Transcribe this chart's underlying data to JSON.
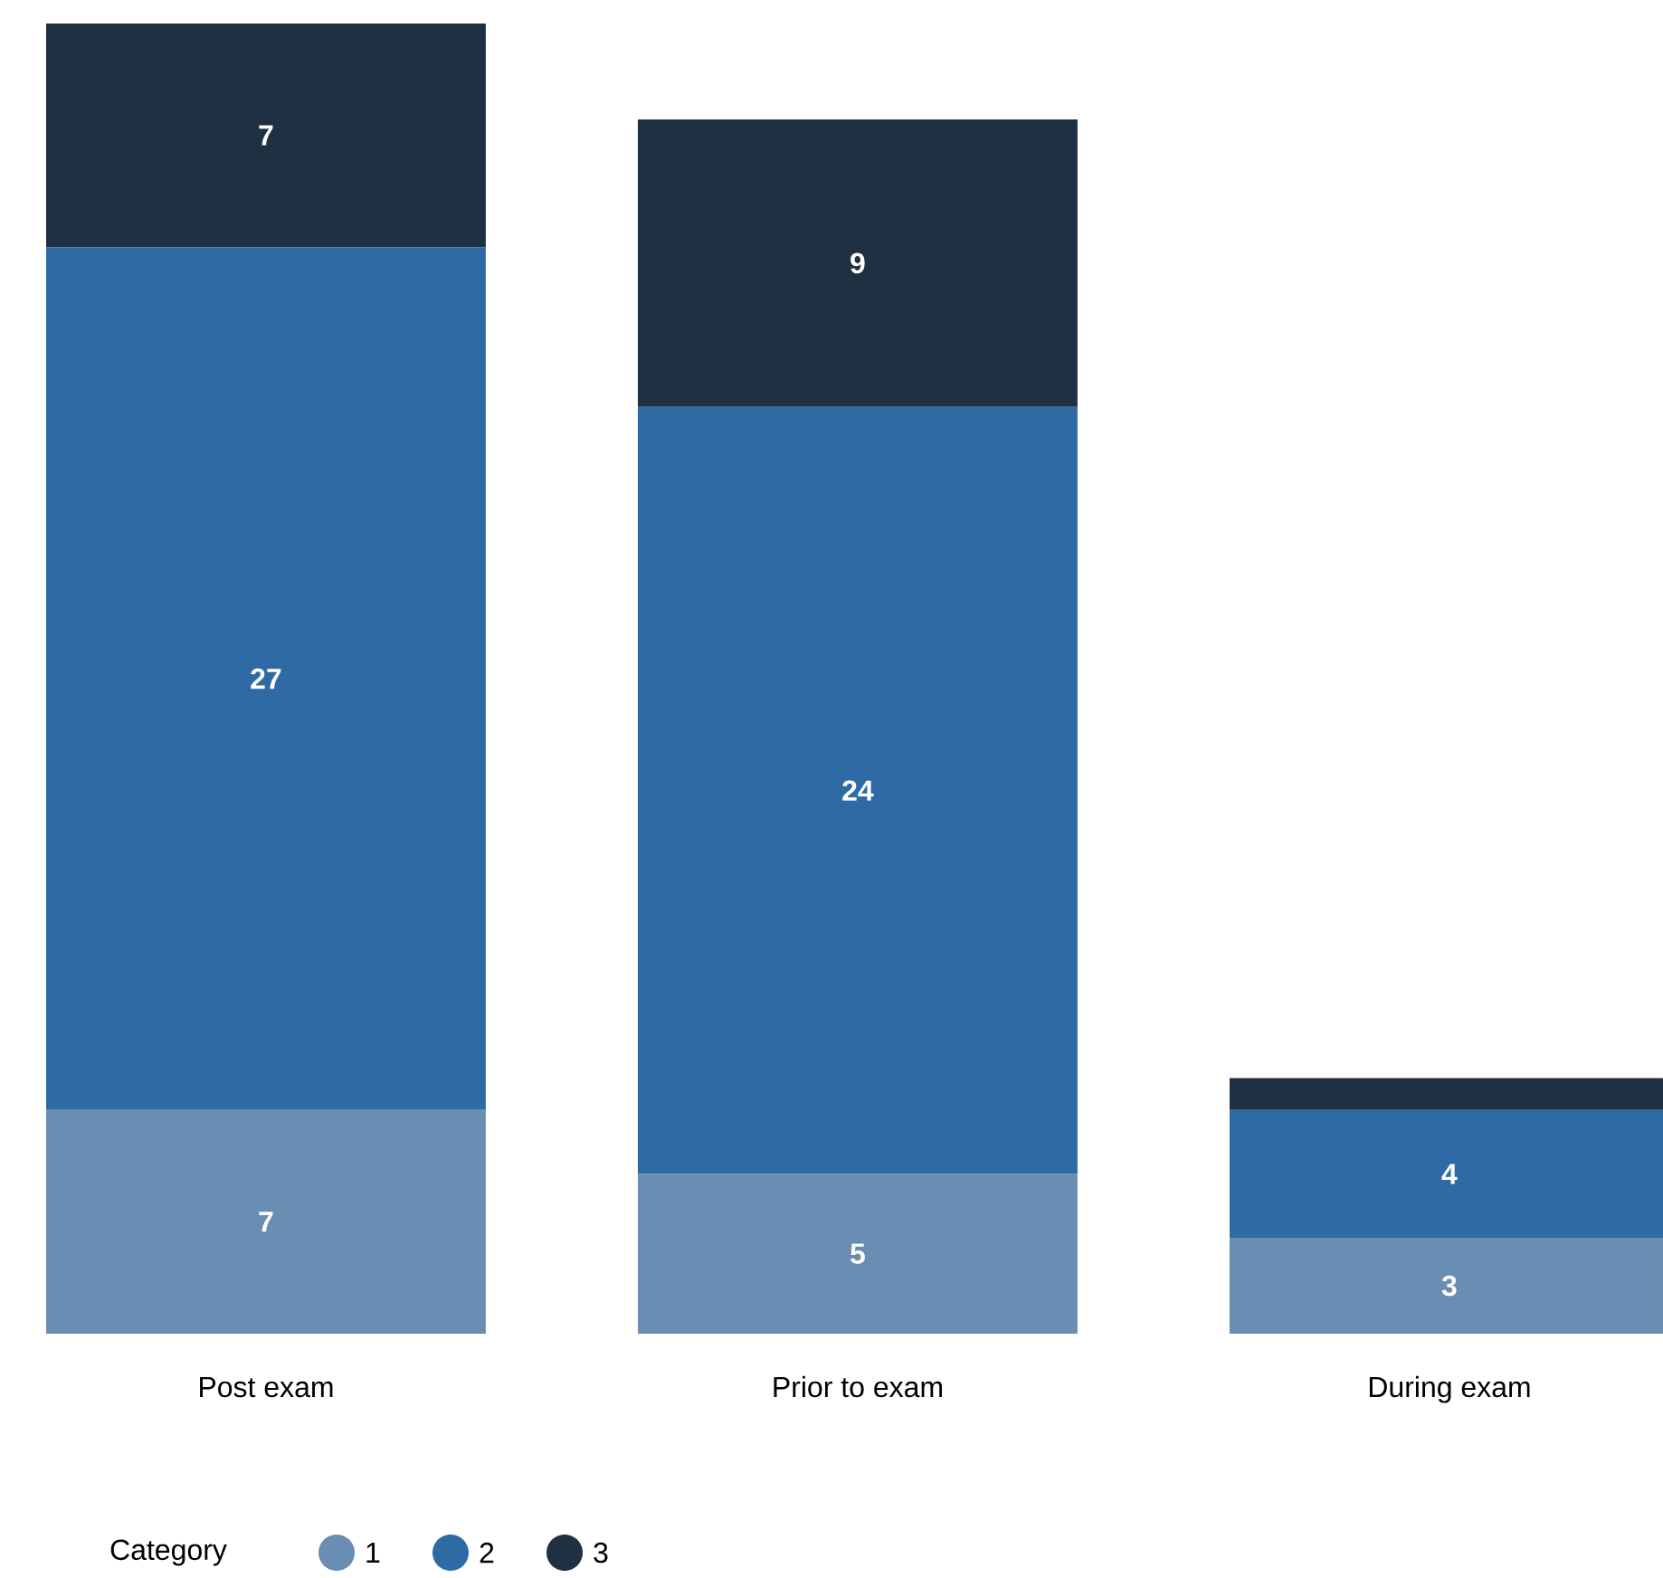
{
  "chart_data": {
    "type": "bar",
    "stacked": true,
    "legend": "bottom left",
    "legend_title": "Category",
    "categories": [
      "Post exam",
      "Prior to exam",
      "During exam"
    ],
    "series": [
      {
        "name": "1",
        "color": "#6a8db3",
        "values": [
          7,
          5,
          3
        ],
        "value_labels": [
          "7",
          "5",
          "3"
        ]
      },
      {
        "name": "2",
        "color": "#2e6aa3",
        "values": [
          27,
          24,
          4
        ],
        "value_labels": [
          "27",
          "24",
          "4"
        ]
      },
      {
        "name": "3",
        "color": "#1f3042",
        "values": [
          7,
          9,
          1
        ],
        "value_labels": [
          "7",
          "9",
          null
        ]
      }
    ]
  }
}
